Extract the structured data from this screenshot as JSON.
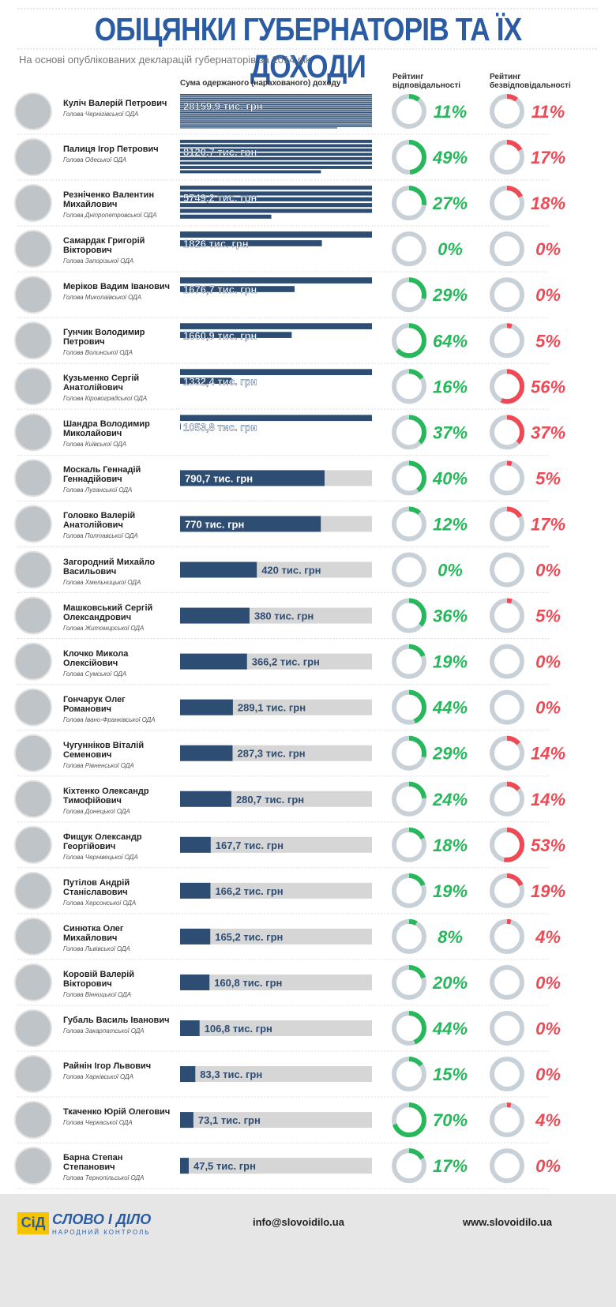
{
  "header": {
    "title": "ОБІЦЯНКИ ГУБЕРНАТОРІВ ТА ЇХ ДОХОДИ",
    "subtitle": "На основі опублікованих декларацій губернаторів за 2014 рік"
  },
  "columns": {
    "income": "Сума одержаного (нарахованого) доходу",
    "responsibility": "Рейтинг відповідальності",
    "irresponsibility": "Рейтинг безвідповідальності"
  },
  "xlim": [
    0,
    1050
  ],
  "rows": [
    {
      "name": "Куліч Валерій Петрович",
      "position": "Голова Чернігівської ОДА",
      "income": 28159.9,
      "income_label": "28159,9 тис. грн",
      "responsibility": 11,
      "responsibility_label": "11%",
      "irresponsibility": 11,
      "irresponsibility_label": "11%"
    },
    {
      "name": "Палиця Ігор Петрович",
      "position": "Голова Одеської ОДА",
      "income": 8120.7,
      "income_label": "8120,7 тис. грн",
      "responsibility": 49,
      "responsibility_label": "49%",
      "irresponsibility": 17,
      "irresponsibility_label": "17%"
    },
    {
      "name": "Резніченко Валентин Михайлович",
      "position": "Голова Дніпропетровської ОДА",
      "income": 5749.2,
      "income_label": "5749,2 тис. грн",
      "responsibility": 27,
      "responsibility_label": "27%",
      "irresponsibility": 18,
      "irresponsibility_label": "18%"
    },
    {
      "name": "Самардак Григорій Вікторович",
      "position": "Голова Запорізької ОДА",
      "income": 1826,
      "income_label": "1826 тис. грн",
      "responsibility": 0,
      "responsibility_label": "0%",
      "irresponsibility": 0,
      "irresponsibility_label": "0%"
    },
    {
      "name": "Меріков Вадим Іванович",
      "position": "Голова Миколаївської ОДА",
      "income": 1676.7,
      "income_label": "1676,7 тис. грн",
      "responsibility": 29,
      "responsibility_label": "29%",
      "irresponsibility": 0,
      "irresponsibility_label": "0%"
    },
    {
      "name": "Гунчик Володимир Петрович",
      "position": "Голова Волинської ОДА",
      "income": 1660.9,
      "income_label": "1660,9 тис. грн",
      "responsibility": 64,
      "responsibility_label": "64%",
      "irresponsibility": 5,
      "irresponsibility_label": "5%"
    },
    {
      "name": "Кузьменко Сергій Анатолійович",
      "position": "Голова Кіровоградської ОДА",
      "income": 1332.4,
      "income_label": "1332,4 тис. грн",
      "responsibility": 16,
      "responsibility_label": "16%",
      "irresponsibility": 56,
      "irresponsibility_label": "56%"
    },
    {
      "name": "Шандра Володимир Миколайович",
      "position": "Голова Київської ОДА",
      "income": 1053.8,
      "income_label": "1053,8 тис. грн",
      "responsibility": 37,
      "responsibility_label": "37%",
      "irresponsibility": 37,
      "irresponsibility_label": "37%"
    },
    {
      "name": "Москаль Геннадій Геннадійович",
      "position": "Голова Луганської ОДА",
      "income": 790.7,
      "income_label": "790,7 тис. грн",
      "responsibility": 40,
      "responsibility_label": "40%",
      "irresponsibility": 5,
      "irresponsibility_label": "5%"
    },
    {
      "name": "Головко Валерій Анатолійович",
      "position": "Голова Полтавської ОДА",
      "income": 770,
      "income_label": "770 тис. грн",
      "responsibility": 12,
      "responsibility_label": "12%",
      "irresponsibility": 17,
      "irresponsibility_label": "17%"
    },
    {
      "name": "Загородний Михайло Васильович",
      "position": "Голова Хмельницької ОДА",
      "income": 420,
      "income_label": "420 тис. грн",
      "responsibility": 0,
      "responsibility_label": "0%",
      "irresponsibility": 0,
      "irresponsibility_label": "0%"
    },
    {
      "name": "Машковський Сергій Олександрович",
      "position": "Голова Житомирської ОДА",
      "income": 380,
      "income_label": "380 тис. грн",
      "responsibility": 36,
      "responsibility_label": "36%",
      "irresponsibility": 5,
      "irresponsibility_label": "5%"
    },
    {
      "name": "Клочко Микола Олексійович",
      "position": "Голова Сумської ОДА",
      "income": 366.2,
      "income_label": "366,2 тис. грн",
      "responsibility": 19,
      "responsibility_label": "19%",
      "irresponsibility": 0,
      "irresponsibility_label": "0%"
    },
    {
      "name": "Гончарук Олег Романович",
      "position": "Голова Івано-Франківської ОДА",
      "income": 289.1,
      "income_label": "289,1 тис. грн",
      "responsibility": 44,
      "responsibility_label": "44%",
      "irresponsibility": 0,
      "irresponsibility_label": "0%"
    },
    {
      "name": "Чугунніков Віталій Семенович",
      "position": "Голова Рівненської ОДА",
      "income": 287.3,
      "income_label": "287,3 тис. грн",
      "responsibility": 29,
      "responsibility_label": "29%",
      "irresponsibility": 14,
      "irresponsibility_label": "14%"
    },
    {
      "name": "Кіхтенко Олександр Тимофійович",
      "position": "Голова Донецької ОДА",
      "income": 280.7,
      "income_label": "280,7 тис. грн",
      "responsibility": 24,
      "responsibility_label": "24%",
      "irresponsibility": 14,
      "irresponsibility_label": "14%"
    },
    {
      "name": "Фищук Олександр Георгійович",
      "position": "Голова Чернівецької ОДА",
      "income": 167.7,
      "income_label": "167,7 тис. грн",
      "responsibility": 18,
      "responsibility_label": "18%",
      "irresponsibility": 53,
      "irresponsibility_label": "53%"
    },
    {
      "name": "Путілов Андрій Станіславович",
      "position": "Голова Херсонської ОДА",
      "income": 166.2,
      "income_label": "166,2 тис. грн",
      "responsibility": 19,
      "responsibility_label": "19%",
      "irresponsibility": 19,
      "irresponsibility_label": "19%"
    },
    {
      "name": "Синютка Олег Михайлович",
      "position": "Голова Львівської ОДА",
      "income": 165.2,
      "income_label": "165,2 тис. грн",
      "responsibility": 8,
      "responsibility_label": "8%",
      "irresponsibility": 4,
      "irresponsibility_label": "4%"
    },
    {
      "name": "Коровій Валерій Вікторович",
      "position": "Голова Вінницької ОДА",
      "income": 160.8,
      "income_label": "160,8 тис. грн",
      "responsibility": 20,
      "responsibility_label": "20%",
      "irresponsibility": 0,
      "irresponsibility_label": "0%"
    },
    {
      "name": "Губаль Василь Іванович",
      "position": "Голова Закарпатської ОДА",
      "income": 106.8,
      "income_label": "106,8 тис. грн",
      "responsibility": 44,
      "responsibility_label": "44%",
      "irresponsibility": 0,
      "irresponsibility_label": "0%"
    },
    {
      "name": "Райнін Ігор Львович",
      "position": "Голова Харківської ОДА",
      "income": 83.3,
      "income_label": "83,3 тис. грн",
      "responsibility": 15,
      "responsibility_label": "15%",
      "irresponsibility": 0,
      "irresponsibility_label": "0%"
    },
    {
      "name": "Ткаченко Юрій Олегович",
      "position": "Голова Черкаської ОДА",
      "income": 73.1,
      "income_label": "73,1 тис. грн",
      "responsibility": 70,
      "responsibility_label": "70%",
      "irresponsibility": 4,
      "irresponsibility_label": "4%"
    },
    {
      "name": "Барна Степан Степанович",
      "position": "Голова Тернопільської ОДА",
      "income": 47.5,
      "income_label": "47,5 тис. грн",
      "responsibility": 17,
      "responsibility_label": "17%",
      "irresponsibility": 0,
      "irresponsibility_label": "0%"
    }
  ],
  "footer": {
    "logo": "СіД",
    "brand": "СЛОВО І ДІЛО",
    "tagline": "НАРОДНИЙ КОНТРОЛЬ",
    "email": "info@slovoidilo.ua",
    "website": "www.slovoidilo.ua"
  }
}
